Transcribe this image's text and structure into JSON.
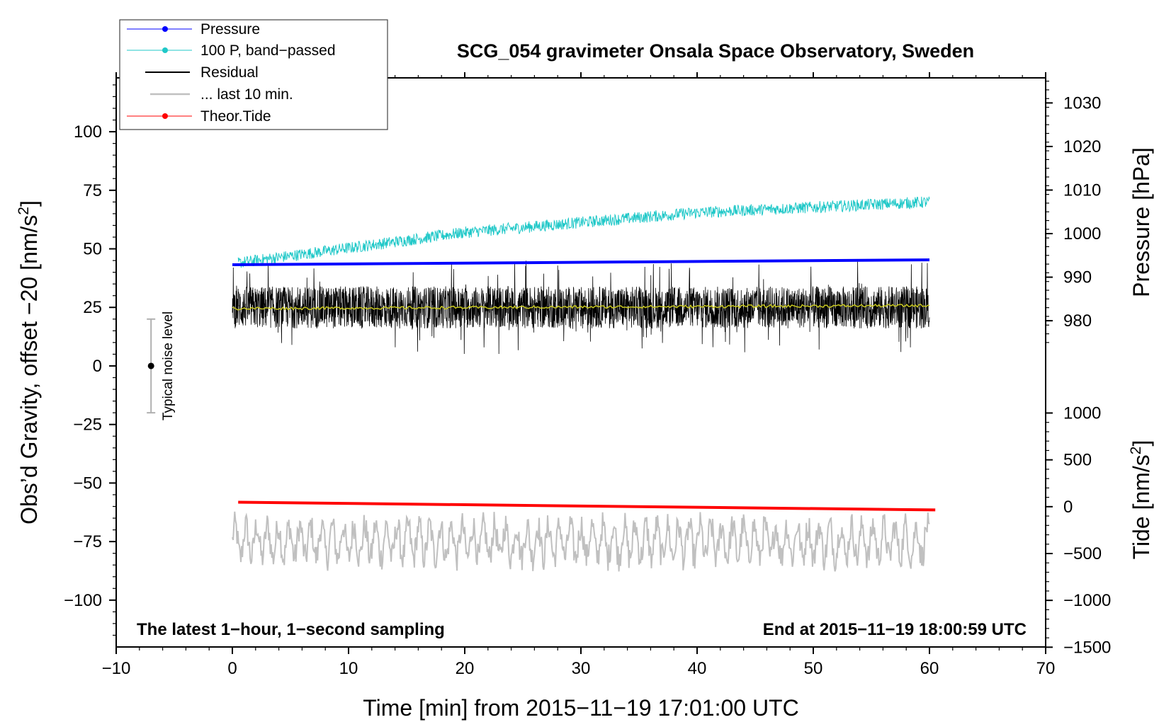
{
  "chart_data": {
    "type": "line",
    "title": "SCG_054 gravimeter Onsala Space Observatory, Sweden",
    "xlabel": "Time [min] from 2015−11−19 17:01:00 UTC",
    "ylabel_left": "Obs’d Gravity, offset −20 [nm/s",
    "ylabel_left_sup": "2",
    "ylabel_left_end": "]",
    "ylabel_right_pressure": "Pressure [hPa]",
    "ylabel_right_tide": "Tide [nm/s",
    "ylabel_right_tide_sup": "2",
    "ylabel_right_tide_end": "]",
    "xlim": [
      -10,
      70
    ],
    "ylim_left": [
      -120,
      123
    ],
    "x_ticks": [
      -10,
      0,
      10,
      20,
      30,
      40,
      50,
      60,
      70
    ],
    "x_tick_labels": [
      "−10",
      "0",
      "10",
      "20",
      "30",
      "40",
      "50",
      "60",
      "70"
    ],
    "y_left_ticks": [
      100,
      75,
      50,
      25,
      0,
      -25,
      -50,
      -75,
      -100
    ],
    "y_left_tick_labels": [
      "100",
      "75",
      "50",
      "25",
      "0",
      "−25",
      "−50",
      "−75",
      "−100"
    ],
    "pressure_axis": {
      "ticks": [
        980,
        990,
        1000,
        1010,
        1020,
        1030
      ],
      "tick_labels": [
        "980",
        "990",
        "1000",
        "1010",
        "1020",
        "1030"
      ],
      "left_value_at_980": 19.3,
      "left_per_hpa": 1.86
    },
    "tide_axis": {
      "ticks": [
        -1500,
        -1000,
        -500,
        0,
        500,
        1000
      ],
      "tick_labels": [
        "−1500",
        "−1000",
        "−500",
        "0",
        "500",
        "1000"
      ],
      "left_value_at_0": -60.1,
      "left_per_unit": 0.04
    },
    "legend": {
      "position": "top-left",
      "entries": [
        {
          "label": "Pressure",
          "color": "#0000ff",
          "marker": true
        },
        {
          "label": "100 P, band−passed",
          "color": "#20c8c8",
          "marker": true
        },
        {
          "label": "Residual",
          "color": "#000000",
          "marker": false
        },
        {
          "label": "... last 10 min.",
          "color": "#c0c0c0",
          "marker": false
        },
        {
          "label": "Theor.Tide",
          "color": "#ff0000",
          "marker": true
        }
      ]
    },
    "series": [
      {
        "name": "Pressure",
        "color": "#0000ff",
        "x_range": [
          0,
          60
        ],
        "y_start": 43.2,
        "y_end": 45.3
      },
      {
        "name": "100 P, band−passed",
        "color": "#20c8c8",
        "x_range": [
          0.5,
          60
        ],
        "trend": [
          [
            0.5,
            44
          ],
          [
            20,
            57
          ],
          [
            40,
            65.5
          ],
          [
            60,
            70
          ]
        ],
        "noise_amplitude": 2.5
      },
      {
        "name": "Residual",
        "color": "#000000",
        "x_range": [
          0,
          60
        ],
        "mean": 25,
        "noise_amplitude": 9,
        "spike_range": [
          0,
          55
        ]
      },
      {
        "name": "Residual smoothed",
        "color": "#c8c820",
        "x_range": [
          0,
          60
        ],
        "y_start": 24.5,
        "y_end": 25.8
      },
      {
        "name": "... last 10 min.",
        "color": "#c0c0c0",
        "x_range": [
          0,
          60
        ],
        "mean": -75,
        "noise_amplitude": 10,
        "y_range": [
          -94,
          -54
        ]
      },
      {
        "name": "Theor.Tide",
        "color": "#ff0000",
        "x_range": [
          0.5,
          60.5
        ],
        "y_start": -58.2,
        "y_end": -61.5
      }
    ],
    "noise_level": {
      "label": "Typical noise level",
      "x": -7,
      "y": 0,
      "low": -20,
      "high": 20
    },
    "annotations": {
      "bottom_left": "The latest 1−hour, 1−second sampling",
      "bottom_right": "End at 2015−11−19 18:00:59 UTC"
    }
  }
}
